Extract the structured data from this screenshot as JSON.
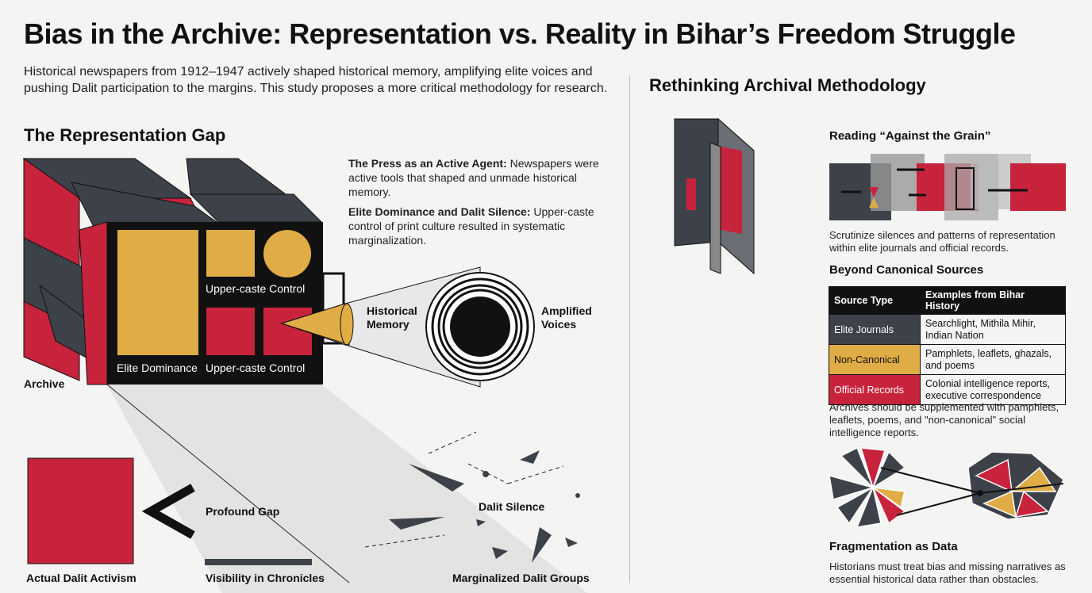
{
  "title": "Bias in the Archive: Representation vs. Reality in Bihar’s Freedom Struggle",
  "subtitle": "Historical newspapers from 1912–1947 actively shaped historical memory, amplifying elite voices and pushing Dalit participation to the margins. This study proposes a more critical methodology for research.",
  "colors": {
    "slate": "#3d424a",
    "red": "#c8233c",
    "gold": "#e0ac45",
    "black": "#111111"
  },
  "left": {
    "heading": "The Representation Gap",
    "points": [
      {
        "bold": "The Press as an Active Agent:",
        "text": " Newspapers were active tools that shaped and unmade historical memory."
      },
      {
        "bold": "Elite Dominance and Dalit Silence:",
        "text": " Upper-caste control of print culture resulted in systematic marginalization."
      }
    ],
    "labels": {
      "elite_dominance": "Elite Dominance",
      "upper_caste_top": "Upper-caste Control",
      "upper_caste_bottom": "Upper-caste Control",
      "archive": "Archive",
      "historical_memory": "Historical Memory",
      "amplified_voices": "Amplified Voices",
      "dalit_silence": "Dalit Silence",
      "marginalized": "Marginalized Dalit Groups",
      "actual_activism": "Actual Dalit Activism",
      "profound_gap": "Profound Gap",
      "visibility": "Visibility in Chronicles"
    }
  },
  "right": {
    "heading": "Rethinking Archival Methodology",
    "against_grain": {
      "heading": "Reading “Against the Grain”",
      "text": "Scrutinize silences and patterns of representation within elite journals and official records."
    },
    "canonical": {
      "heading": "Beyond Canonical Sources",
      "columns": [
        "Source Type",
        "Examples from Bihar History"
      ],
      "rows": [
        {
          "type": "Elite Journals",
          "examples": "Searchlight, Mithila Mihir, Indian Nation",
          "color": "#3d424a"
        },
        {
          "type": "Non-Canonical",
          "examples": "Pamphlets, leaflets, ghazals, and poems",
          "color": "#e0ac45"
        },
        {
          "type": "Official Records",
          "examples": "Colonial intelligence reports, executive correspondence",
          "color": "#c8233c"
        }
      ],
      "note": "Archives should be supplemented with pamphiets, leaflets, poems, and \"non-canonical\" social intelligence reports."
    },
    "fragmentation": {
      "heading": "Fragmentation as Data",
      "text": "Historians must treat bias and missing narratives as essential historical data rather than obstacles."
    }
  }
}
